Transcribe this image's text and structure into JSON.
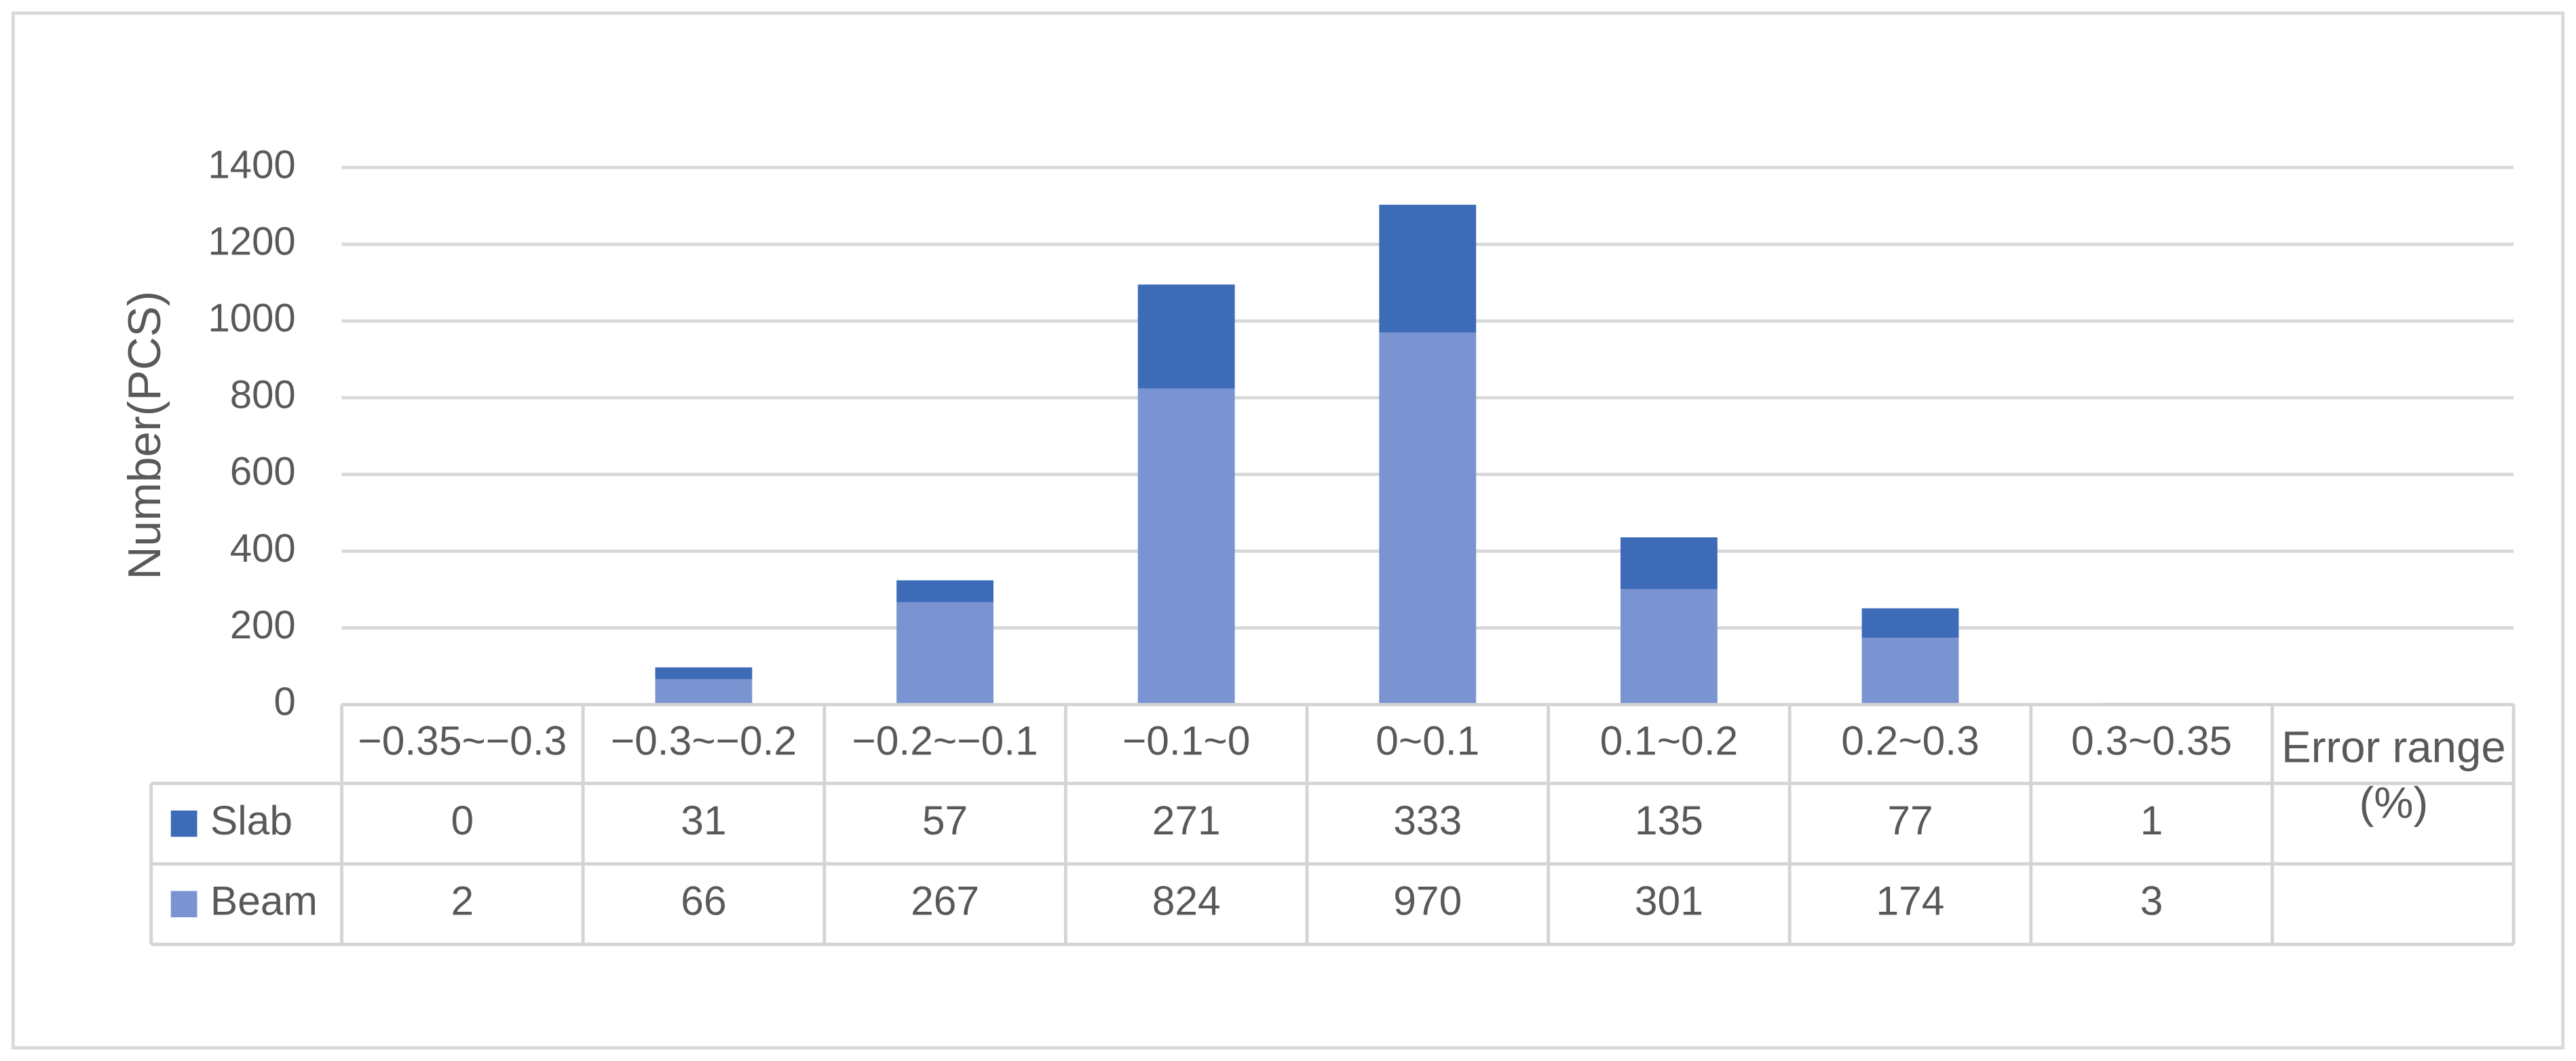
{
  "chart_data": {
    "type": "stacked_bar",
    "y_label": "Number(PCS)",
    "x_label": "Error range (%)",
    "categories": [
      "−0.35~−0.3",
      "−0.3~−0.2",
      "−0.2~−0.1",
      "−0.1~0",
      "0~0.1",
      "0.1~0.2",
      "0.2~0.3",
      "0.3~0.35"
    ],
    "series": [
      {
        "name": "Beam",
        "color": "#7a93d1",
        "values": [
          2,
          66,
          267,
          824,
          970,
          301,
          174,
          3
        ]
      },
      {
        "name": "Slab",
        "color": "#3d6bb8",
        "values": [
          0,
          31,
          57,
          271,
          333,
          135,
          77,
          1
        ]
      }
    ],
    "ylim": [
      0,
      1400
    ],
    "yticks": [
      0,
      200,
      400,
      600,
      800,
      1000,
      1200,
      1400
    ],
    "grid": true
  }
}
